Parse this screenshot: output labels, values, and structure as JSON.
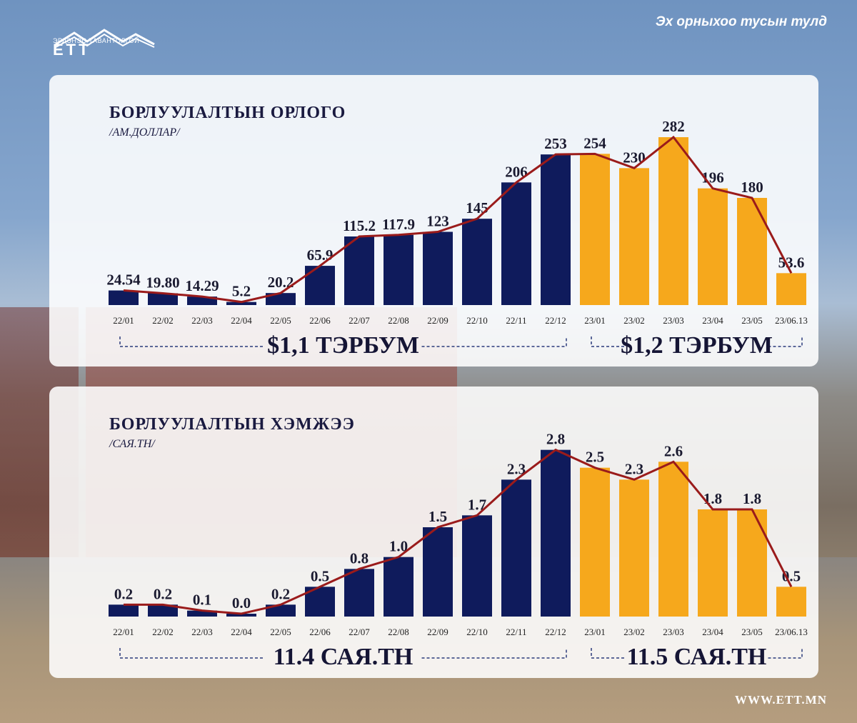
{
  "header": {
    "logo_small_text": "ЭРДЭНЭС ТАВАНТОЛГОЙ",
    "logo_big_text": "ЕТТ",
    "slogan": "Эх орныхоо тусын тулд"
  },
  "footer": {
    "website": "WWW.ETT.MN"
  },
  "colors": {
    "bar_2022": "#0f1b5c",
    "bar_2023": "#f6a81c",
    "trend_line": "#9a1b1b",
    "panel_bg": "#ffffff"
  },
  "chart_data": [
    {
      "type": "bar",
      "title": "БОРЛУУЛАЛТЫН ОРЛОГО",
      "subtitle": "/АМ.ДОЛЛАР/",
      "categories": [
        "22/01",
        "22/02",
        "22/03",
        "22/04",
        "22/05",
        "22/06",
        "22/07",
        "22/08",
        "22/09",
        "22/10",
        "22/11",
        "22/12",
        "23/01",
        "23/02",
        "23/03",
        "23/04",
        "23/05",
        "23/06.13"
      ],
      "series": [
        {
          "values": [
            24.54,
            19.8,
            14.29,
            5.2,
            20.2,
            65.9,
            115.2,
            117.9,
            123,
            145,
            206,
            253,
            254,
            230,
            282,
            196,
            180,
            53.6
          ],
          "labels": [
            "24.54",
            "19.80",
            "14.29",
            "5.2",
            "20.2",
            "65.9",
            "115.2",
            "117.9",
            "123",
            "145",
            "206",
            "253",
            "254",
            "230",
            "282",
            "196",
            "180",
            "53.6"
          ]
        }
      ],
      "trend_line": true,
      "ylim": [
        0,
        300
      ],
      "totals": [
        {
          "label": "$1,1 ТЭРБУМ",
          "range": [
            "22/01",
            "22/12"
          ]
        },
        {
          "label": "$1,2 ТЭРБУМ",
          "range": [
            "23/01",
            "23/06.13"
          ]
        }
      ]
    },
    {
      "type": "bar",
      "title": "БОРЛУУЛАЛТЫН ХЭМЖЭЭ",
      "subtitle": "/САЯ.ТН/",
      "categories": [
        "22/01",
        "22/02",
        "22/03",
        "22/04",
        "22/05",
        "22/06",
        "22/07",
        "22/08",
        "22/09",
        "22/10",
        "22/11",
        "22/12",
        "23/01",
        "23/02",
        "23/03",
        "23/04",
        "23/05",
        "23/06.13"
      ],
      "series": [
        {
          "values": [
            0.2,
            0.2,
            0.1,
            0.0,
            0.2,
            0.5,
            0.8,
            1.0,
            1.5,
            1.7,
            2.3,
            2.8,
            2.5,
            2.3,
            2.6,
            1.8,
            1.8,
            0.5
          ],
          "labels": [
            "0.2",
            "0.2",
            "0.1",
            "0.0",
            "0.2",
            "0.5",
            "0.8",
            "1.0",
            "1.5",
            "1.7",
            "2.3",
            "2.8",
            "2.5",
            "2.3",
            "2.6",
            "1.8",
            "1.8",
            "0.5"
          ]
        }
      ],
      "trend_line": true,
      "ylim": [
        0,
        3
      ],
      "totals": [
        {
          "label": "11.4 САЯ.ТН",
          "range": [
            "22/01",
            "22/12"
          ]
        },
        {
          "label": "11.5 САЯ.ТН",
          "range": [
            "23/01",
            "23/06.13"
          ]
        }
      ]
    }
  ]
}
